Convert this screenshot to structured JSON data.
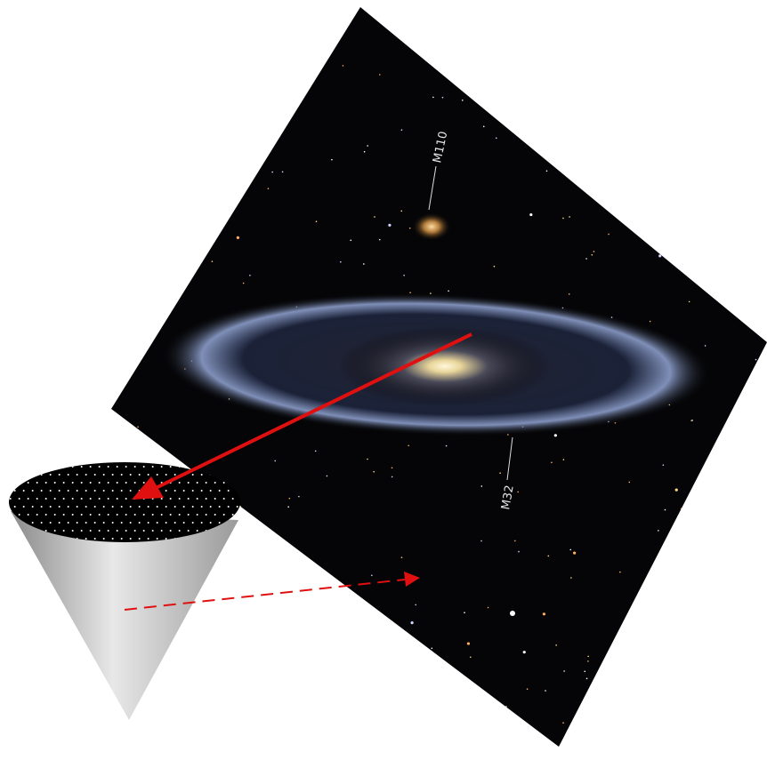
{
  "labels": {
    "m110": "M110",
    "m32": "M32"
  }
}
